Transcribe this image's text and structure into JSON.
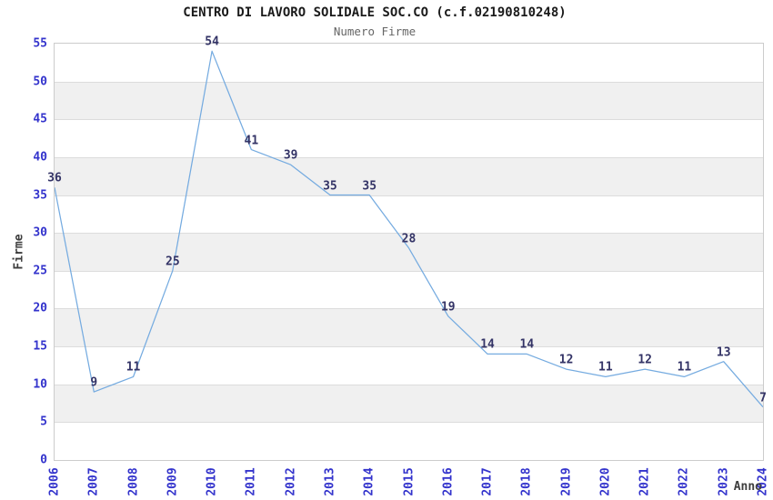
{
  "title": "CENTRO DI LAVORO SOLIDALE SOC.CO (c.f.02190810248)",
  "subtitle": "Numero Firme",
  "chart_data": {
    "type": "line",
    "title": "CENTRO DI LAVORO SOLIDALE SOC.CO (c.f.02190810248)",
    "subtitle": "Numero Firme",
    "xlabel": "Anno",
    "ylabel": "Firme",
    "x": [
      "2006",
      "2007",
      "2008",
      "2009",
      "2010",
      "2011",
      "2012",
      "2013",
      "2014",
      "2015",
      "2016",
      "2017",
      "2018",
      "2019",
      "2020",
      "2021",
      "2022",
      "2023",
      "2024"
    ],
    "values": [
      36,
      9,
      11,
      25,
      54,
      41,
      39,
      35,
      35,
      28,
      19,
      14,
      14,
      12,
      11,
      12,
      11,
      13,
      7
    ],
    "point_labels": [
      "36",
      "9",
      "11",
      "25",
      "54",
      "41",
      "39",
      "35",
      "35",
      "28",
      "19",
      "14",
      "14",
      "12",
      "11",
      "12",
      "11",
      "13",
      "7"
    ],
    "ylim": [
      0,
      55
    ],
    "ytick_step": 5,
    "yticks": [
      0,
      5,
      10,
      15,
      20,
      25,
      30,
      35,
      40,
      45,
      50,
      55
    ],
    "grid": "horizontal",
    "banded_background": true,
    "legend": "none",
    "colors": {
      "line": "#75abe0",
      "tick_label": "#3333cc",
      "point_label": "#333366",
      "band": "#f0f0f0",
      "gridline": "#dcdcdc",
      "plot_border": "#cccccc",
      "title": "#1a1a1a",
      "subtitle": "#666666",
      "axis_name": "#3d3d3d"
    }
  }
}
